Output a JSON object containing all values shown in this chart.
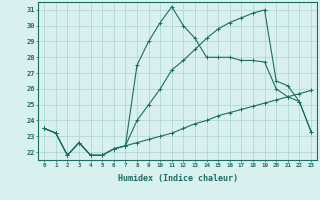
{
  "xlabel": "Humidex (Indice chaleur)",
  "background_color": "#d8f0ee",
  "grid_color": "#aed4cf",
  "line_color": "#1a6e64",
  "xlim": [
    -0.5,
    23.5
  ],
  "ylim": [
    21.5,
    31.5
  ],
  "yticks": [
    22,
    23,
    24,
    25,
    26,
    27,
    28,
    29,
    30,
    31
  ],
  "xticks": [
    0,
    1,
    2,
    3,
    4,
    5,
    6,
    7,
    8,
    9,
    10,
    11,
    12,
    13,
    14,
    15,
    16,
    17,
    18,
    19,
    20,
    21,
    22,
    23
  ],
  "xtick_labels": [
    "0",
    "1",
    "2",
    "3",
    "4",
    "5",
    "6",
    "7",
    "8",
    "9",
    "10",
    "11",
    "12",
    "13",
    "14",
    "15",
    "16",
    "17",
    "18",
    "19",
    "20",
    "21",
    "22",
    "23"
  ],
  "series": [
    [
      23.5,
      23.2,
      21.8,
      22.6,
      21.8,
      21.8,
      22.2,
      22.4,
      27.5,
      29.0,
      30.2,
      31.2,
      30.0,
      29.2,
      28.0,
      28.0,
      28.0,
      27.8,
      27.8,
      27.7,
      26.0,
      25.5,
      25.2,
      23.3
    ],
    [
      23.5,
      23.2,
      21.8,
      22.6,
      21.8,
      21.8,
      22.2,
      22.4,
      24.0,
      25.0,
      26.0,
      27.2,
      27.8,
      28.5,
      29.2,
      29.8,
      30.2,
      30.5,
      30.8,
      31.0,
      26.5,
      26.2,
      25.2,
      23.3
    ],
    [
      23.5,
      23.2,
      21.8,
      22.6,
      21.8,
      21.8,
      22.2,
      22.4,
      22.6,
      22.8,
      23.0,
      23.2,
      23.5,
      23.8,
      24.0,
      24.3,
      24.5,
      24.7,
      24.9,
      25.1,
      25.3,
      25.5,
      25.7,
      25.9
    ]
  ]
}
